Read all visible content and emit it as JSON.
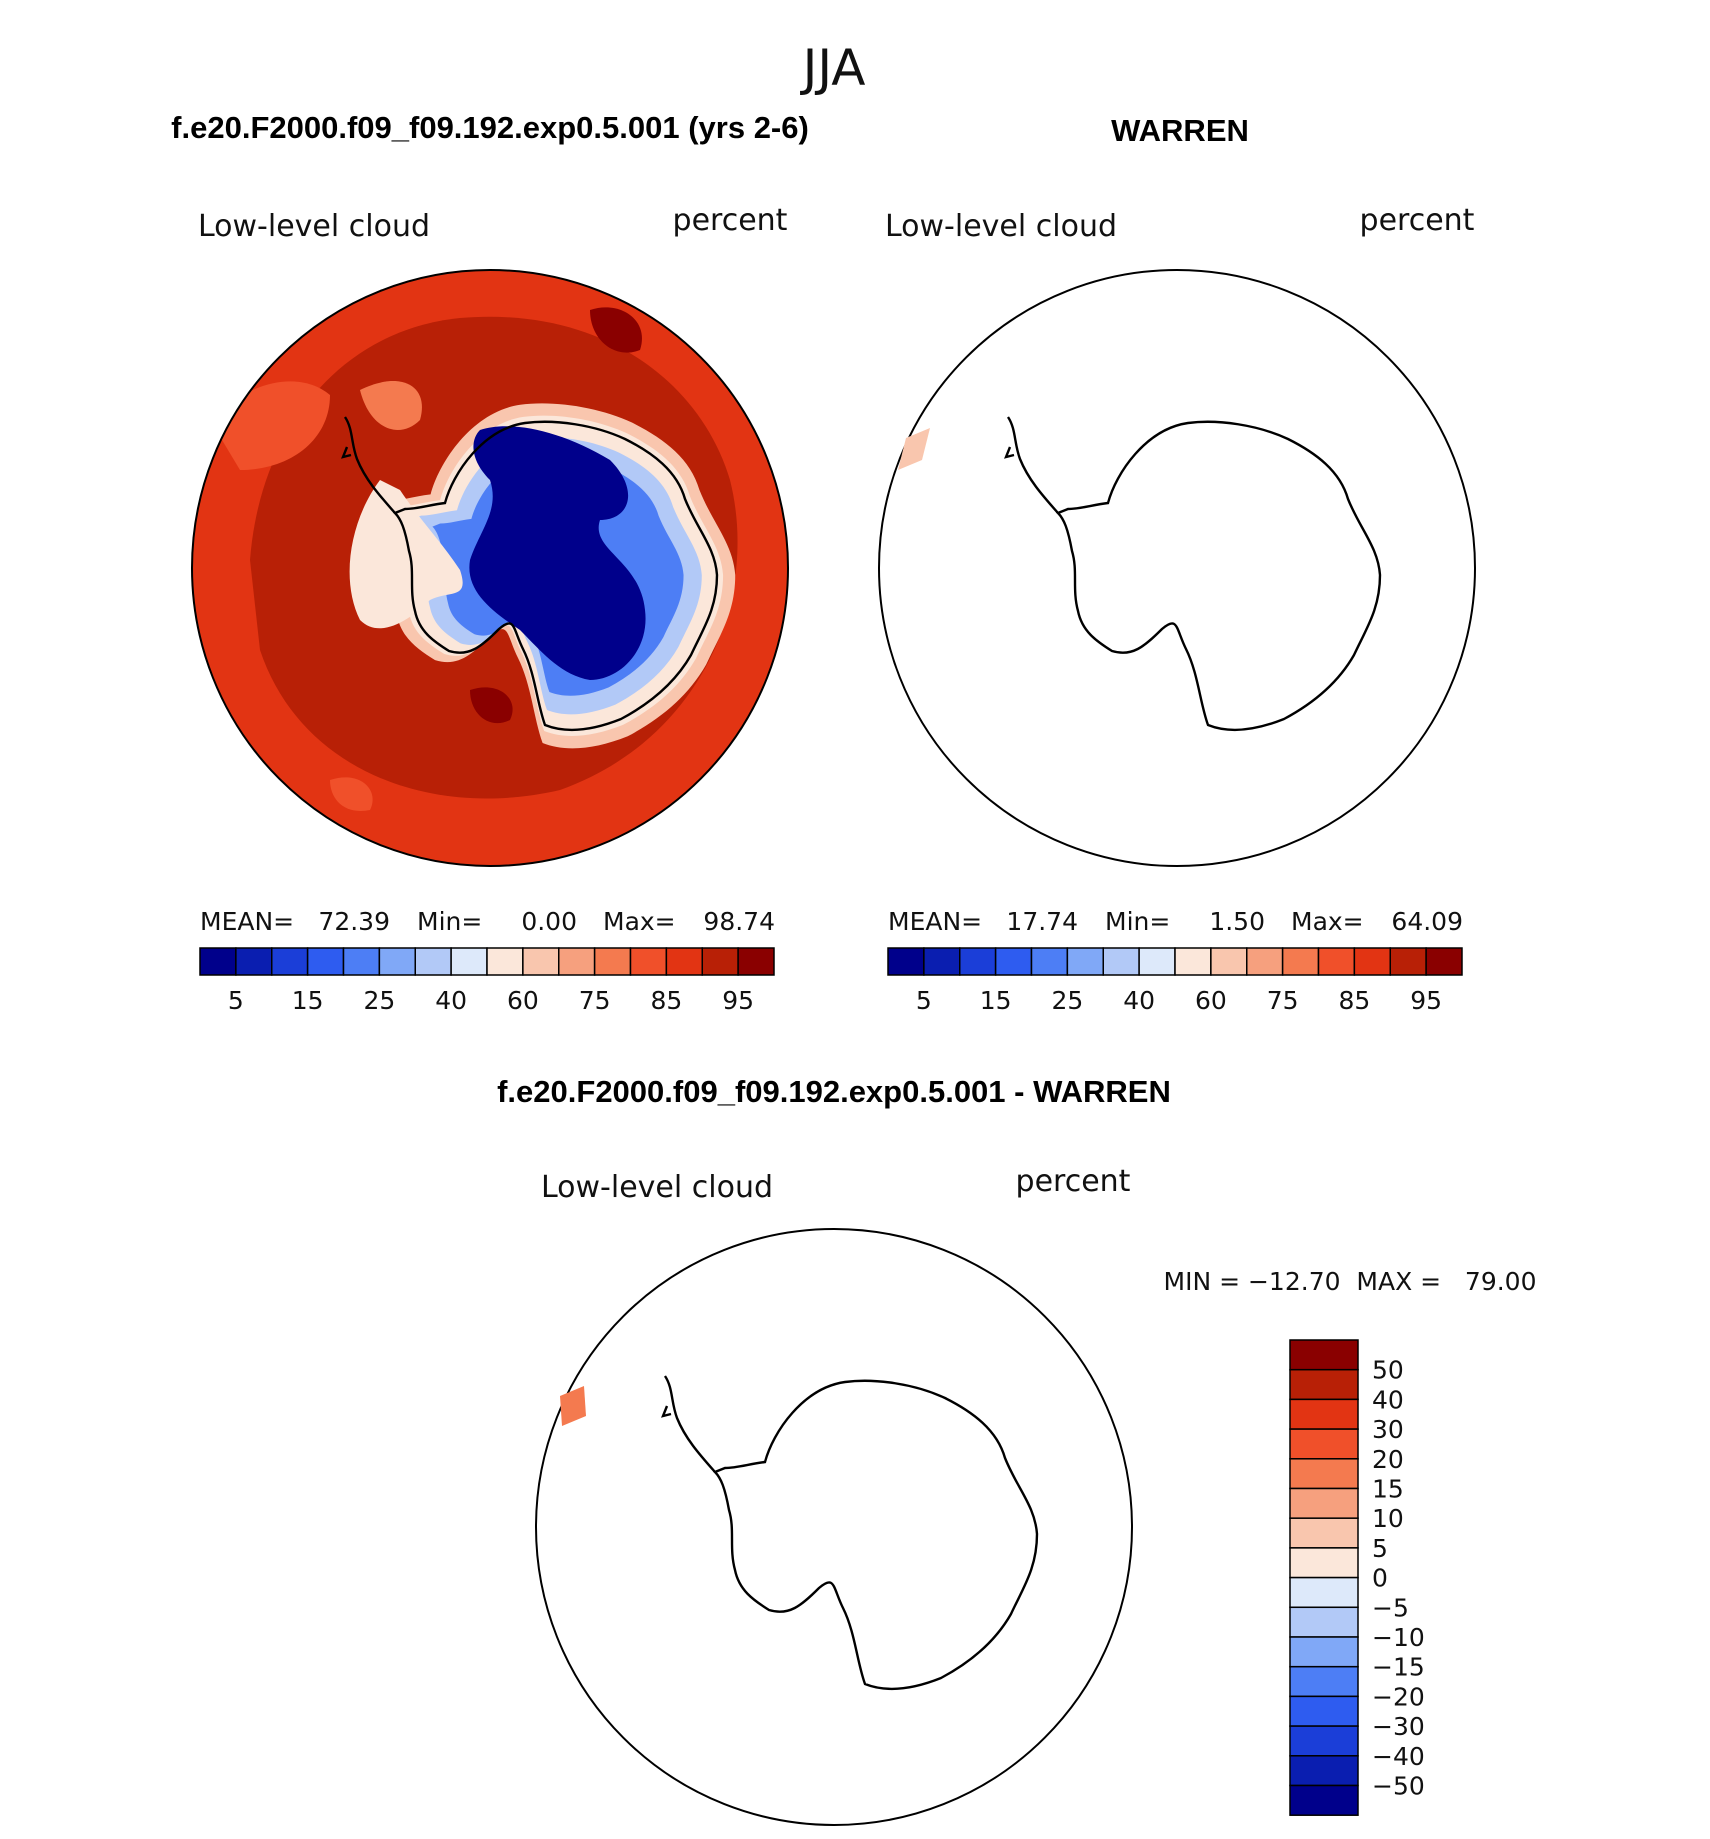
{
  "title": "JJA",
  "panel_titles": {
    "model": "f.e20.F2000.f09_f09.192.exp0.5.001 (yrs 2-6)",
    "obs": "WARREN",
    "diff": "f.e20.F2000.f09_f09.192.exp0.5.001 - WARREN"
  },
  "colors": {
    "abs_palette": [
      "#00008b",
      "#0a1eb0",
      "#1b3ed8",
      "#2e5cf0",
      "#4d7ef5",
      "#80a8f7",
      "#b2c9f7",
      "#dde9fa",
      "#fbe7da",
      "#f9c6ae",
      "#f6a07e",
      "#f47a4f",
      "#f0502a",
      "#e23413",
      "#b82006",
      "#8a0000"
    ],
    "diff_palette": [
      "#00008b",
      "#0a1eb0",
      "#1b3ed8",
      "#2e5cf0",
      "#4d7ef5",
      "#80a8f7",
      "#b2c9f7",
      "#dde9fa",
      "#fbe7da",
      "#f9c6ae",
      "#f6a07e",
      "#f47a4f",
      "#f0502a",
      "#e23413",
      "#b82006",
      "#8a0000"
    ],
    "ocean_model": "#e23413",
    "ocean_dark": "#b82006"
  },
  "chart_data": [
    {
      "type": "heatmap",
      "panel": "model",
      "left_label": "Low-level cloud",
      "right_label": "percent",
      "stats": {
        "mean_label": "MEAN=",
        "mean": "72.39",
        "min_label": "Min=",
        "min": "0.00",
        "max_label": "Max=",
        "max": "98.74"
      },
      "colorbar_ticks": [
        "5",
        "15",
        "25",
        "40",
        "60",
        "75",
        "85",
        "95"
      ],
      "levels": [
        5,
        10,
        15,
        20,
        25,
        30,
        40,
        50,
        60,
        70,
        75,
        80,
        85,
        90,
        95
      ]
    },
    {
      "type": "heatmap",
      "panel": "obs",
      "left_label": "Low-level cloud",
      "right_label": "percent",
      "stats": {
        "mean_label": "MEAN=",
        "mean": "17.74",
        "min_label": "Min=",
        "min": "1.50",
        "max_label": "Max=",
        "max": "64.09"
      },
      "colorbar_ticks": [
        "5",
        "15",
        "25",
        "40",
        "60",
        "75",
        "85",
        "95"
      ],
      "levels": [
        5,
        10,
        15,
        20,
        25,
        30,
        40,
        50,
        60,
        70,
        75,
        80,
        85,
        90,
        95
      ]
    },
    {
      "type": "heatmap",
      "panel": "diff",
      "left_label": "Low-level cloud",
      "right_label": "percent",
      "range_text": "MIN = −12.70  MAX =   79.00",
      "colorbar_ticks": [
        "50",
        "40",
        "30",
        "20",
        "15",
        "10",
        "5",
        "0",
        "−5",
        "−10",
        "−15",
        "−20",
        "−30",
        "−40",
        "−50"
      ]
    }
  ]
}
